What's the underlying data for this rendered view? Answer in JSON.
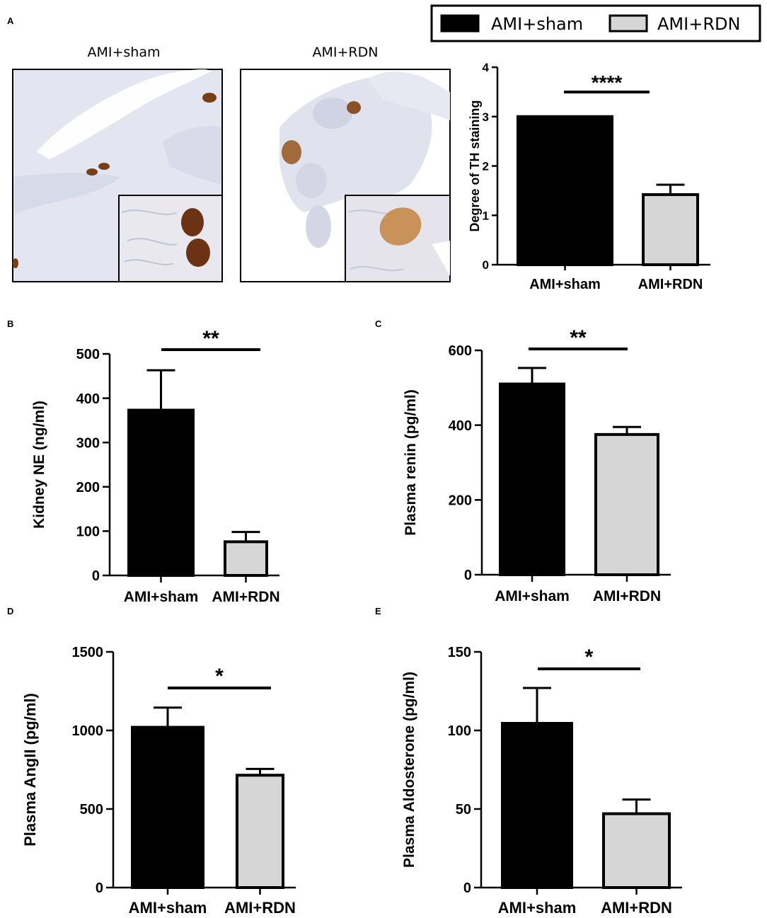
{
  "panel_labels": {
    "a": "A",
    "b": "B",
    "c": "C",
    "d": "D",
    "e": "E"
  },
  "legend": [
    {
      "label": "AMI+sham",
      "color": "#000000"
    },
    {
      "label": "AMI+RDN",
      "color": "#d6d6d6"
    }
  ],
  "micrographs": {
    "left_title": "AMI+sham",
    "right_title": "AMI+RDN"
  },
  "colors": {
    "sham": "#000000",
    "rdn": "#d6d6d6",
    "stain_brown": "#6b3a1c",
    "tissue": "#dfe1ee"
  },
  "chart_data": [
    {
      "panel": "A",
      "type": "bar",
      "categories": [
        "AMI+sham",
        "AMI+RDN"
      ],
      "values": [
        3.0,
        1.42
      ],
      "errors": [
        0,
        0.2
      ],
      "ylabel": "Degree of TH staining",
      "ylim": [
        0,
        4
      ],
      "yticks": [
        0,
        1,
        2,
        3,
        4
      ],
      "significance": "****"
    },
    {
      "panel": "B",
      "type": "bar",
      "categories": [
        "AMI+sham",
        "AMI+RDN"
      ],
      "values": [
        373,
        76
      ],
      "errors": [
        90,
        22
      ],
      "ylabel": "Kidney NE (ng/ml)",
      "ylim": [
        0,
        500
      ],
      "yticks": [
        0,
        100,
        200,
        300,
        400,
        500
      ],
      "significance": "**"
    },
    {
      "panel": "C",
      "type": "bar",
      "categories": [
        "AMI+sham",
        "AMI+RDN"
      ],
      "values": [
        510,
        375
      ],
      "errors": [
        43,
        20
      ],
      "ylabel": "Plasma renin (pg/ml)",
      "ylim": [
        0,
        600
      ],
      "yticks": [
        0,
        200,
        400,
        600
      ],
      "significance": "**"
    },
    {
      "panel": "D",
      "type": "bar",
      "categories": [
        "AMI+sham",
        "AMI+RDN"
      ],
      "values": [
        1020,
        715
      ],
      "errors": [
        125,
        40
      ],
      "ylabel": "Plasma AngII (pg/ml)",
      "ylim": [
        0,
        1500
      ],
      "yticks": [
        0,
        500,
        1000,
        1500
      ],
      "significance": "*"
    },
    {
      "panel": "E",
      "type": "bar",
      "categories": [
        "AMI+sham",
        "AMI+RDN"
      ],
      "values": [
        104.5,
        47
      ],
      "errors": [
        22.5,
        9
      ],
      "ylabel": "Plasma Aldosterone (pg/ml)",
      "ylim": [
        0,
        150
      ],
      "yticks": [
        0,
        50,
        100,
        150
      ],
      "significance": "*"
    }
  ]
}
